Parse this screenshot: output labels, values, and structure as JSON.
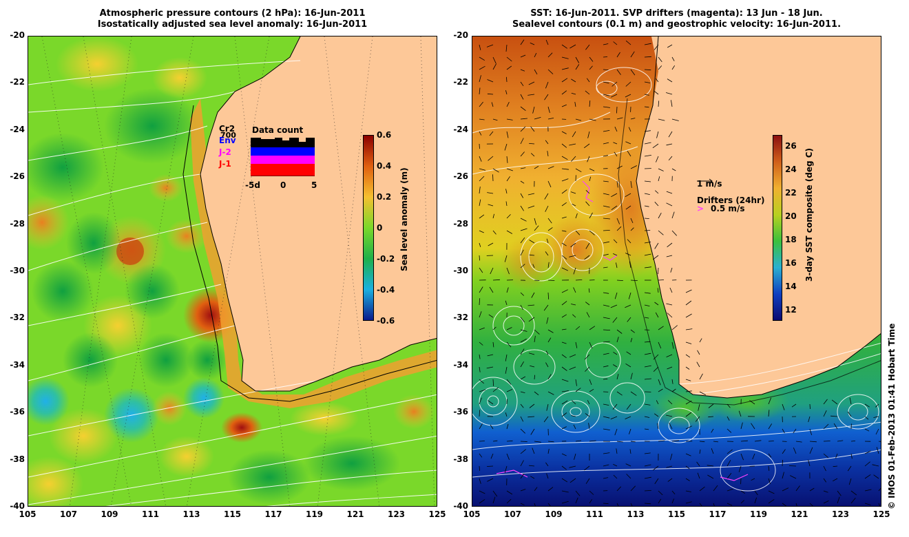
{
  "left_panel": {
    "title_line1": "Atmospheric pressure contours (2 hPa): 16-Jun-2011",
    "title_line2": "Isostatically adjusted sea level anomaly: 16-Jun-2011",
    "colorbar": {
      "title": "Sea level anomaly (m)",
      "ticks": [
        "0.6",
        "0.4",
        "0.2",
        "0",
        "-0.2",
        "-0.4",
        "-0.6"
      ],
      "colors": [
        "#8b0000",
        "#e06010",
        "#f5c030",
        "#7ad82a",
        "#1fb04a",
        "#1ab0e0",
        "#0a1a8c"
      ]
    },
    "legend": {
      "title": "Data count",
      "series": [
        {
          "name": "Cr2",
          "color": "#000000"
        },
        {
          "name": "Env",
          "color": "#0000ff"
        },
        {
          "name": "J-2",
          "color": "#ff00ff"
        },
        {
          "name": "J-1",
          "color": "#ff0000"
        }
      ],
      "count_label": "700",
      "x_ticks": [
        "-5d",
        "0",
        "5"
      ]
    }
  },
  "right_panel": {
    "title_line1": "SST: 16-Jun-2011. SVP drifters (magenta): 13 Jun - 18 Jun.",
    "title_line2": "Sealevel contours (0.1 m) and geostrophic velocity: 16-Jun-2011.",
    "colorbar": {
      "title": "3-day SST composite (deg C)",
      "ticks": [
        "26",
        "24",
        "22",
        "20",
        "18",
        "16",
        "14",
        "12"
      ],
      "colors": [
        "#8b1010",
        "#d0601a",
        "#f0b030",
        "#b8d020",
        "#3cc03c",
        "#2ab0d0",
        "#1040c0",
        "#0a0a70"
      ]
    },
    "velocity_scale_label": "1 m/s",
    "drifter_label": "Drifters (24hr)",
    "drifter_speed_label": "0.5 m/s"
  },
  "axes": {
    "y_ticks": [
      "-20",
      "-22",
      "-24",
      "-26",
      "-28",
      "-30",
      "-32",
      "-34",
      "-36",
      "-38",
      "-40"
    ],
    "x_ticks": [
      "105",
      "107",
      "109",
      "111",
      "113",
      "115",
      "117",
      "119",
      "121",
      "123",
      "125"
    ]
  },
  "credit": "© IMOS 01-Feb-2013 01:41 Hobart Time",
  "land_color": "#fdc898"
}
